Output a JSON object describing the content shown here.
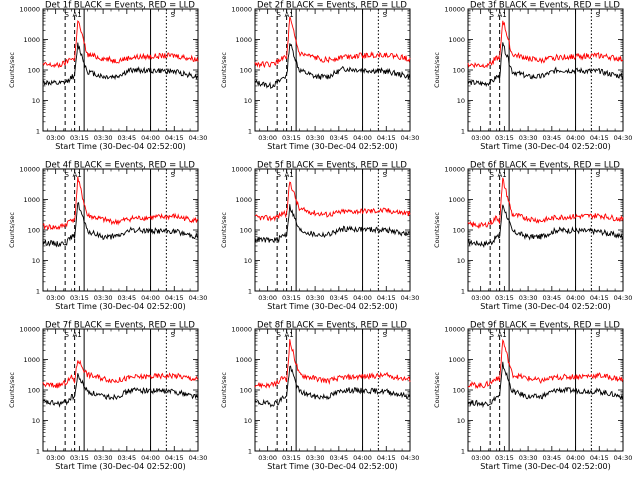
{
  "figure": {
    "ylabel": "Counts/sec",
    "xlabel": "Start Time (30-Dec-04 02:52:00)",
    "legend_events": "BLACK = Events",
    "legend_lld": "RED = LLD",
    "colors": {
      "events": "#000000",
      "lld": "#ff0000",
      "axes": "#000000",
      "background": "#ffffff"
    }
  },
  "chart_data": [
    {
      "type": "line",
      "title": "Det 1f  BLACK = Events, RED = LLD",
      "det": 1,
      "x_ticks": [
        "03:00",
        "03:15",
        "03:30",
        "03:45",
        "04:00",
        "04:15",
        "04:30"
      ],
      "y_ticks": [
        "1",
        "10",
        "100",
        "1000",
        "10000"
      ],
      "yscale": "log",
      "ylim": [
        1,
        10000
      ],
      "xlim": [
        "02:52",
        "04:30"
      ],
      "level_labels": [
        "S",
        "A1",
        "S"
      ],
      "events_anchor": [
        40,
        35,
        40,
        60,
        60,
        700,
        90,
        60,
        60,
        100,
        90,
        60
      ],
      "lld_anchor": [
        150,
        140,
        180,
        260,
        200,
        4500,
        320,
        240,
        200,
        260,
        300,
        220
      ]
    },
    {
      "type": "line",
      "title": "Det 2f  BLACK = Events, RED = LLD",
      "det": 2,
      "x_ticks": [
        "03:00",
        "03:15",
        "03:30",
        "03:45",
        "04:00",
        "04:15",
        "04:30"
      ],
      "y_ticks": [
        "1",
        "10",
        "100",
        "1000",
        "10000"
      ],
      "yscale": "log",
      "ylim": [
        1,
        10000
      ],
      "xlim": [
        "02:52",
        "04:30"
      ],
      "level_labels": [
        "S",
        "A1",
        "S"
      ],
      "events_anchor": [
        40,
        30,
        40,
        60,
        60,
        800,
        100,
        60,
        60,
        110,
        90,
        60
      ],
      "lld_anchor": [
        160,
        150,
        190,
        280,
        220,
        5000,
        340,
        250,
        210,
        280,
        320,
        230
      ]
    },
    {
      "type": "line",
      "title": "Det 3f  BLACK = Events, RED = LLD",
      "det": 3,
      "x_ticks": [
        "03:00",
        "03:15",
        "03:30",
        "03:45",
        "04:00",
        "04:15",
        "04:30"
      ],
      "y_ticks": [
        "1",
        "10",
        "100",
        "1000",
        "10000"
      ],
      "yscale": "log",
      "ylim": [
        1,
        10000
      ],
      "xlim": [
        "02:52",
        "04:30"
      ],
      "level_labels": [
        "S",
        "A1",
        "S"
      ],
      "events_anchor": [
        40,
        35,
        40,
        60,
        60,
        700,
        90,
        60,
        60,
        100,
        90,
        60
      ],
      "lld_anchor": [
        150,
        140,
        180,
        260,
        200,
        4500,
        320,
        240,
        200,
        260,
        300,
        220
      ]
    },
    {
      "type": "line",
      "title": "Det 4f  BLACK = Events, RED = LLD",
      "det": 4,
      "x_ticks": [
        "03:00",
        "03:15",
        "03:30",
        "03:45",
        "04:00",
        "04:15",
        "04:30"
      ],
      "y_ticks": [
        "1",
        "10",
        "100",
        "1000",
        "10000"
      ],
      "yscale": "log",
      "ylim": [
        1,
        10000
      ],
      "xlim": [
        "02:52",
        "04:30"
      ],
      "level_labels": [
        "S",
        "A1",
        "S"
      ],
      "events_anchor": [
        40,
        35,
        40,
        60,
        60,
        800,
        90,
        60,
        60,
        100,
        90,
        60
      ],
      "lld_anchor": [
        130,
        120,
        160,
        240,
        180,
        5000,
        300,
        220,
        180,
        240,
        280,
        200
      ]
    },
    {
      "type": "line",
      "title": "Det 5f  BLACK = Events, RED = LLD",
      "det": 5,
      "x_ticks": [
        "03:00",
        "03:15",
        "03:30",
        "03:45",
        "04:00",
        "04:15",
        "04:30"
      ],
      "y_ticks": [
        "1",
        "10",
        "100",
        "1000",
        "10000"
      ],
      "yscale": "log",
      "ylim": [
        1,
        10000
      ],
      "xlim": [
        "02:52",
        "04:30"
      ],
      "level_labels": [
        "S",
        "A1",
        "S"
      ],
      "events_anchor": [
        50,
        45,
        50,
        70,
        70,
        600,
        100,
        70,
        70,
        110,
        100,
        70
      ],
      "lld_anchor": [
        260,
        240,
        280,
        380,
        320,
        4000,
        480,
        360,
        320,
        400,
        440,
        340
      ]
    },
    {
      "type": "line",
      "title": "Det 6f  BLACK = Events, RED = LLD",
      "det": 6,
      "x_ticks": [
        "03:00",
        "03:15",
        "03:30",
        "03:45",
        "04:00",
        "04:15",
        "04:30"
      ],
      "y_ticks": [
        "1",
        "10",
        "100",
        "1000",
        "10000"
      ],
      "yscale": "log",
      "ylim": [
        1,
        10000
      ],
      "xlim": [
        "02:52",
        "04:30"
      ],
      "level_labels": [
        "S",
        "A1",
        "S"
      ],
      "events_anchor": [
        40,
        35,
        40,
        60,
        60,
        700,
        90,
        60,
        60,
        100,
        90,
        60
      ],
      "lld_anchor": [
        150,
        140,
        180,
        260,
        200,
        4500,
        320,
        240,
        200,
        260,
        300,
        220
      ]
    },
    {
      "type": "line",
      "title": "Det 7f  BLACK = Events, RED = LLD",
      "det": 7,
      "x_ticks": [
        "03:00",
        "03:15",
        "03:30",
        "03:45",
        "04:00",
        "04:15",
        "04:30"
      ],
      "y_ticks": [
        "1",
        "10",
        "100",
        "1000",
        "10000"
      ],
      "yscale": "log",
      "ylim": [
        1,
        10000
      ],
      "xlim": [
        "02:52",
        "04:30"
      ],
      "level_labels": [
        "S",
        "A1",
        "S"
      ],
      "events_anchor": [
        40,
        35,
        40,
        60,
        60,
        300,
        90,
        60,
        60,
        100,
        90,
        60
      ],
      "lld_anchor": [
        150,
        140,
        180,
        260,
        200,
        1000,
        320,
        240,
        200,
        260,
        300,
        220
      ]
    },
    {
      "type": "line",
      "title": "Det 8f  BLACK = Events, RED = LLD",
      "det": 8,
      "x_ticks": [
        "03:00",
        "03:15",
        "03:30",
        "03:45",
        "04:00",
        "04:15",
        "04:30"
      ],
      "y_ticks": [
        "1",
        "10",
        "100",
        "1000",
        "10000"
      ],
      "yscale": "log",
      "ylim": [
        1,
        10000
      ],
      "xlim": [
        "02:52",
        "04:30"
      ],
      "level_labels": [
        "S",
        "A1",
        "S"
      ],
      "events_anchor": [
        40,
        35,
        40,
        60,
        60,
        600,
        90,
        60,
        60,
        100,
        90,
        60
      ],
      "lld_anchor": [
        150,
        140,
        180,
        260,
        200,
        4000,
        320,
        240,
        200,
        260,
        300,
        220
      ]
    },
    {
      "type": "line",
      "title": "Det 9f  BLACK = Events, RED = LLD",
      "det": 9,
      "x_ticks": [
        "03:00",
        "03:15",
        "03:30",
        "03:45",
        "04:00",
        "04:15",
        "04:30"
      ],
      "y_ticks": [
        "1",
        "10",
        "100",
        "1000",
        "10000"
      ],
      "yscale": "log",
      "ylim": [
        1,
        10000
      ],
      "xlim": [
        "02:52",
        "04:30"
      ],
      "level_labels": [
        "S",
        "A1",
        "S"
      ],
      "events_anchor": [
        40,
        35,
        40,
        60,
        60,
        700,
        90,
        60,
        60,
        100,
        90,
        60
      ],
      "lld_anchor": [
        150,
        140,
        180,
        260,
        200,
        4500,
        320,
        240,
        200,
        260,
        300,
        220
      ]
    }
  ]
}
